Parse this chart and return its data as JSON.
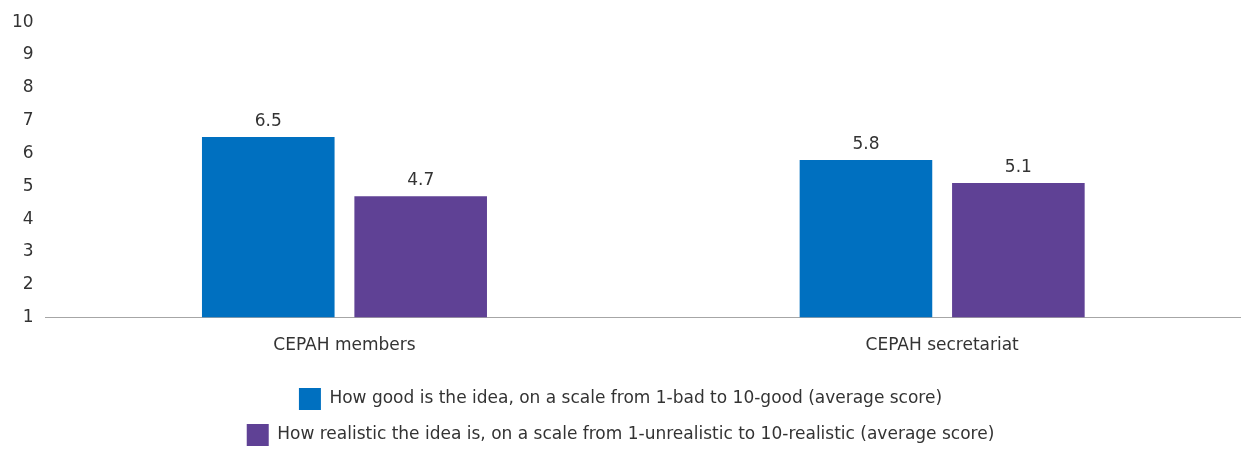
{
  "chart_data": {
    "type": "bar",
    "categories": [
      "CEPAH members",
      "CEPAH secretariat"
    ],
    "series": [
      {
        "name": "How good is the idea, on a scale from 1-bad to 10-good (average score)",
        "color": "#0070c0",
        "values": [
          6.5,
          5.8
        ]
      },
      {
        "name": "How realistic the idea is, on a scale from 1-unrealistic to 10-realistic (average score)",
        "color": "#5f4195",
        "values": [
          4.7,
          5.1
        ]
      }
    ],
    "ylim": [
      1,
      10
    ],
    "yticks": [
      1,
      2,
      3,
      4,
      5,
      6,
      7,
      8,
      9,
      10
    ],
    "grid": false,
    "legend": "bottom",
    "data_labels": true
  }
}
